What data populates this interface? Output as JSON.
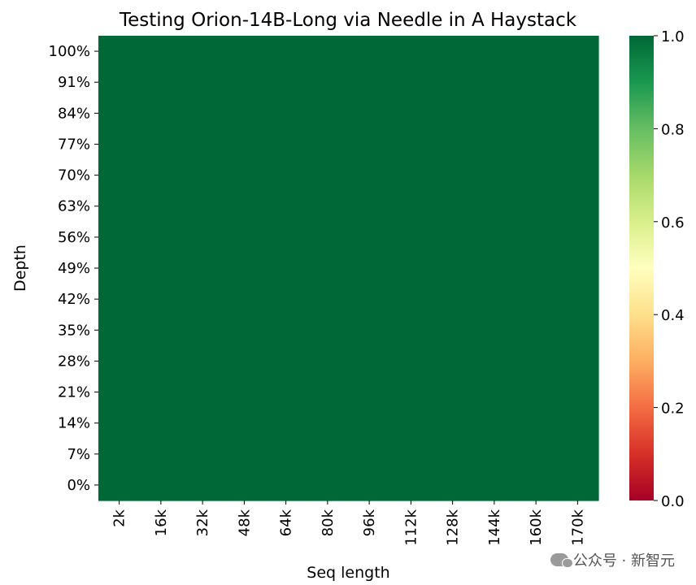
{
  "chart_data": {
    "type": "heatmap",
    "title": "Testing Orion-14B-Long via Needle in A Haystack",
    "xlabel": "Seq length",
    "ylabel": "Depth",
    "x_categories": [
      "2k",
      "16k",
      "32k",
      "48k",
      "64k",
      "80k",
      "96k",
      "112k",
      "128k",
      "144k",
      "160k",
      "170k"
    ],
    "y_categories": [
      "100%",
      "91%",
      "84%",
      "77%",
      "70%",
      "63%",
      "56%",
      "49%",
      "42%",
      "35%",
      "28%",
      "21%",
      "14%",
      "7%",
      "0%"
    ],
    "values": [
      [
        1,
        1,
        1,
        1,
        1,
        1,
        1,
        1,
        1,
        1,
        1,
        1
      ],
      [
        1,
        1,
        1,
        1,
        1,
        1,
        1,
        1,
        1,
        1,
        1,
        1
      ],
      [
        1,
        1,
        1,
        1,
        1,
        1,
        1,
        1,
        1,
        1,
        1,
        1
      ],
      [
        1,
        1,
        1,
        1,
        1,
        1,
        1,
        1,
        1,
        1,
        1,
        1
      ],
      [
        1,
        1,
        1,
        1,
        1,
        1,
        1,
        1,
        1,
        1,
        1,
        1
      ],
      [
        1,
        1,
        1,
        1,
        1,
        1,
        1,
        1,
        1,
        1,
        1,
        1
      ],
      [
        1,
        1,
        1,
        1,
        1,
        1,
        1,
        1,
        1,
        1,
        1,
        1
      ],
      [
        1,
        1,
        1,
        1,
        1,
        1,
        1,
        1,
        1,
        1,
        1,
        1
      ],
      [
        1,
        1,
        1,
        1,
        1,
        1,
        1,
        1,
        1,
        1,
        1,
        1
      ],
      [
        1,
        1,
        1,
        1,
        1,
        1,
        1,
        1,
        1,
        1,
        1,
        1
      ],
      [
        1,
        1,
        1,
        1,
        1,
        1,
        1,
        1,
        1,
        1,
        1,
        1
      ],
      [
        1,
        1,
        1,
        1,
        1,
        1,
        1,
        1,
        1,
        1,
        1,
        1
      ],
      [
        1,
        1,
        1,
        1,
        1,
        1,
        1,
        1,
        1,
        1,
        1,
        1
      ],
      [
        1,
        1,
        1,
        1,
        1,
        1,
        1,
        1,
        1,
        1,
        1,
        1
      ],
      [
        1,
        1,
        1,
        1,
        1,
        1,
        1,
        1,
        1,
        1,
        1,
        1
      ]
    ],
    "colorbar": {
      "colormap": "RdYlGn",
      "range": [
        0.0,
        1.0
      ],
      "ticks": [
        "0.0",
        "0.2",
        "0.4",
        "0.6",
        "0.8",
        "1.0"
      ],
      "stops": [
        "#a50026",
        "#d73027",
        "#f46d43",
        "#fdae61",
        "#fee08b",
        "#ffffbf",
        "#d9ef8b",
        "#a6d96a",
        "#66bd63",
        "#1a9850",
        "#006837"
      ]
    }
  },
  "watermark": {
    "text": "公众号 · 新智元"
  }
}
